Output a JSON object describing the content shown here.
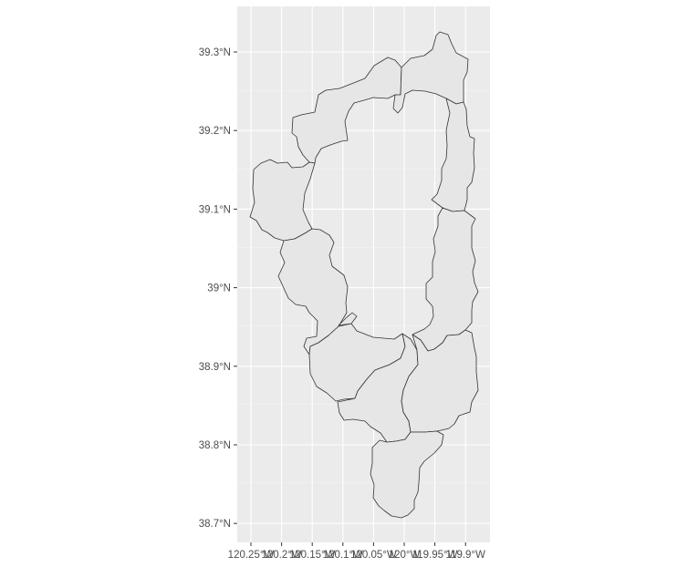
{
  "map": {
    "panel_background": "#ebebeb",
    "grid_color": "#ffffff",
    "polygon_fill": "#e6e6e6",
    "polygon_stroke": "#333333",
    "lat_ticks": [
      "39.3°N",
      "39.2°N",
      "39.1°N",
      "39°N",
      "38.9°N",
      "38.8°N",
      "38.7°N"
    ],
    "lon_ticks": [
      "120.25°W",
      "120.2°W",
      "120.15°W",
      "120.1°W",
      "120.05°W",
      "120°W",
      "119.95°W",
      "119.9°W"
    ],
    "lat_values": [
      39.3,
      39.2,
      39.1,
      39.0,
      38.9,
      38.8,
      38.7
    ],
    "lon_values": [
      -120.25,
      -120.2,
      -120.15,
      -120.1,
      -120.05,
      -120.0,
      -119.95,
      -119.9
    ]
  }
}
